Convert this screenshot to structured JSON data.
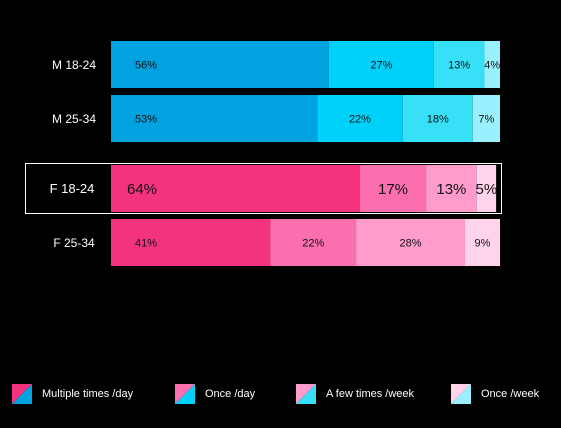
{
  "chart_data": {
    "type": "bar",
    "orientation": "horizontal",
    "stacked": true,
    "categories": [
      "M 18-24",
      "M 25-34",
      "F 18-24",
      "F 25-34"
    ],
    "highlighted_category": "F 18-24",
    "series": [
      {
        "name": "Multiple times /day",
        "values": [
          56,
          53,
          64,
          41
        ]
      },
      {
        "name": "Once /day",
        "values": [
          27,
          22,
          17,
          22
        ]
      },
      {
        "name": "A few times /week",
        "values": [
          13,
          18,
          13,
          28
        ]
      },
      {
        "name": "Once /week",
        "values": [
          4,
          7,
          5,
          9
        ]
      }
    ],
    "value_labels": [
      [
        "56%",
        "27%",
        "13%",
        "4%"
      ],
      [
        "53%",
        "22%",
        "18%",
        "7%"
      ],
      [
        "64%",
        "17%",
        "13%",
        "5%"
      ],
      [
        "41%",
        "22%",
        "28%",
        "9%"
      ]
    ],
    "colors": {
      "male": [
        "#00a2e0",
        "#00d1fb",
        "#38e0f7",
        "#9bf0ff"
      ],
      "female": [
        "#f4337e",
        "#fb6fae",
        "#ff9ccb",
        "#ffd3e9"
      ]
    },
    "xlim": [
      0,
      100
    ],
    "legend_position": "bottom",
    "grid": false
  },
  "legend": [
    {
      "label": "Multiple times /day",
      "top_color": "#f4337e",
      "bottom_color": "#00a2e0"
    },
    {
      "label": "Once /day",
      "top_color": "#fb6fae",
      "bottom_color": "#00d1fb"
    },
    {
      "label": "A few times /week",
      "top_color": "#ff9ccb",
      "bottom_color": "#38e0f7"
    },
    {
      "label": "Once /week",
      "top_color": "#ffd3e9",
      "bottom_color": "#9bf0ff"
    }
  ]
}
